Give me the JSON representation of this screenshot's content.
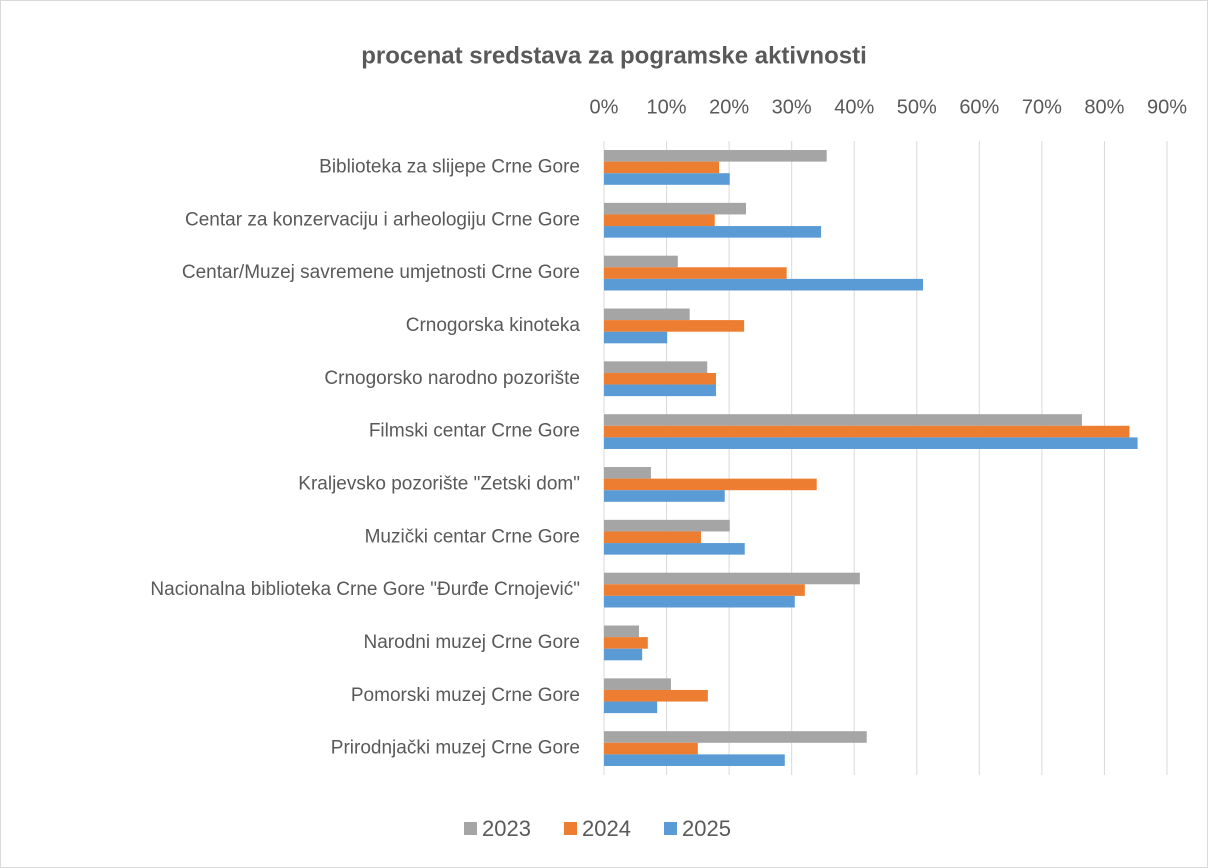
{
  "chart_data": {
    "type": "bar",
    "orientation": "horizontal",
    "title": "procenat sredstava za pogramske aktivnosti",
    "categories": [
      "Biblioteka za slijepe Crne Gore",
      "Centar za konzervaciju i arheologiju Crne Gore",
      "Centar/Muzej savremene umjetnosti Crne Gore",
      "Crnogorska kinoteka",
      "Crnogorsko narodno pozorište",
      "Filmski centar Crne Gore",
      "Kraljevsko pozorište \"Zetski dom\"",
      "Muzički centar Crne Gore",
      "Nacionalna biblioteka Crne Gore \"Đurđe Crnojević\"",
      "Narodni muzej Crne Gore",
      "Pomorski muzej Crne Gore",
      "Prirodnjački muzej Crne Gore"
    ],
    "series": [
      {
        "name": "2023",
        "color": "#a5a5a5",
        "values": [
          35.6,
          22.7,
          11.8,
          13.7,
          16.5,
          76.4,
          7.5,
          20.1,
          40.9,
          5.6,
          10.7,
          42.0
        ]
      },
      {
        "name": "2024",
        "color": "#ed7d31",
        "values": [
          18.4,
          17.7,
          29.2,
          22.4,
          17.9,
          84.0,
          34.0,
          15.5,
          32.1,
          7.0,
          16.6,
          15.0
        ]
      },
      {
        "name": "2025",
        "color": "#5b9bd5",
        "values": [
          20.1,
          34.7,
          51.0,
          10.1,
          17.9,
          85.3,
          19.3,
          22.5,
          30.5,
          6.1,
          8.5,
          28.9
        ]
      }
    ],
    "xlim": [
      0,
      90
    ],
    "xticks": [
      {
        "value": 0,
        "label": "0%"
      },
      {
        "value": 10,
        "label": "10%"
      },
      {
        "value": 20,
        "label": "20%"
      },
      {
        "value": 30,
        "label": "30%"
      },
      {
        "value": 40,
        "label": "40%"
      },
      {
        "value": 50,
        "label": "50%"
      },
      {
        "value": 60,
        "label": "60%"
      },
      {
        "value": 70,
        "label": "70%"
      },
      {
        "value": 80,
        "label": "80%"
      },
      {
        "value": 90,
        "label": "90%"
      }
    ],
    "grid": true,
    "legend": "bottom"
  }
}
